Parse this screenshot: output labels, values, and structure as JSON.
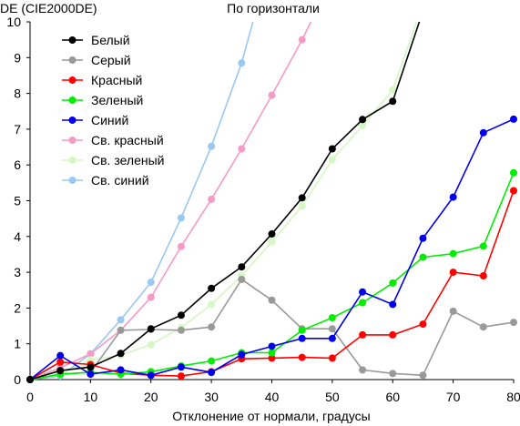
{
  "chart_data": {
    "type": "line",
    "title": "По горизонтали",
    "ylabel": "DE (CIE2000DE)",
    "xlabel": "Отклонение от нормали, градусы",
    "xlim": [
      0,
      80
    ],
    "ylim": [
      0,
      10
    ],
    "xticks": [
      0,
      10,
      20,
      30,
      40,
      50,
      60,
      70,
      80
    ],
    "yticks": [
      0,
      1,
      2,
      3,
      4,
      5,
      6,
      7,
      8,
      9,
      10
    ],
    "grid": false,
    "legend_position": "top-left",
    "series": [
      {
        "name": "Белый",
        "color": "#000000",
        "x": [
          0,
          5,
          10,
          15,
          20,
          25,
          30,
          35,
          40,
          45,
          50,
          55,
          60,
          65
        ],
        "y": [
          0.0,
          0.25,
          0.35,
          0.73,
          1.42,
          1.8,
          2.55,
          3.15,
          4.07,
          5.08,
          6.45,
          7.27,
          7.78,
          10.3
        ]
      },
      {
        "name": "Серый",
        "color": "#999999",
        "x": [
          0,
          5,
          10,
          15,
          20,
          25,
          30,
          35,
          40,
          45,
          50,
          55,
          60,
          65,
          70,
          75,
          80
        ],
        "y": [
          0.0,
          0.15,
          0.2,
          1.38,
          1.4,
          1.38,
          1.47,
          2.8,
          2.22,
          1.42,
          1.42,
          0.27,
          0.17,
          0.12,
          1.91,
          1.47,
          1.6
        ]
      },
      {
        "name": "Красный",
        "color": "#ff0000",
        "x": [
          0,
          5,
          10,
          15,
          20,
          25,
          30,
          35,
          40,
          45,
          50,
          55,
          60,
          65,
          70,
          75,
          80
        ],
        "y": [
          0.0,
          0.49,
          0.42,
          0.18,
          0.12,
          0.1,
          0.22,
          0.58,
          0.6,
          0.62,
          0.6,
          1.25,
          1.25,
          1.55,
          3.0,
          2.9,
          5.28
        ]
      },
      {
        "name": "Зеленый",
        "color": "#00ee00",
        "x": [
          0,
          5,
          10,
          15,
          20,
          25,
          30,
          35,
          40,
          45,
          50,
          55,
          60,
          65,
          70,
          75,
          80
        ],
        "y": [
          0.0,
          0.15,
          0.2,
          0.15,
          0.22,
          0.38,
          0.52,
          0.75,
          0.75,
          1.38,
          1.73,
          2.15,
          2.7,
          3.42,
          3.52,
          3.73,
          5.78
        ]
      },
      {
        "name": "Синий",
        "color": "#0000ee",
        "x": [
          0,
          5,
          10,
          15,
          20,
          25,
          30,
          35,
          40,
          45,
          50,
          55,
          60,
          65,
          70,
          75,
          80
        ],
        "y": [
          0.0,
          0.67,
          0.15,
          0.27,
          0.12,
          0.35,
          0.2,
          0.7,
          0.93,
          1.15,
          1.15,
          2.45,
          2.1,
          3.95,
          5.1,
          6.9,
          7.28
        ]
      },
      {
        "name": "Св. красный",
        "color": "#f79ac5",
        "x": [
          0,
          5,
          10,
          15,
          20,
          25,
          30,
          35,
          40,
          45,
          50
        ],
        "y": [
          0.0,
          0.33,
          0.72,
          1.38,
          2.3,
          3.72,
          5.04,
          6.45,
          7.95,
          9.5,
          11.2
        ]
      },
      {
        "name": "Св. зеленый",
        "color": "#d5f7c3",
        "x": [
          0,
          5,
          10,
          15,
          20,
          25,
          30,
          35,
          40,
          45,
          50,
          55,
          60,
          65
        ],
        "y": [
          0.0,
          0.15,
          0.55,
          0.68,
          0.98,
          1.45,
          2.1,
          2.9,
          3.85,
          4.85,
          6.15,
          7.1,
          8.1,
          10.5
        ]
      },
      {
        "name": "Св. синий",
        "color": "#99c8f1",
        "x": [
          0,
          5,
          10,
          15,
          20,
          25,
          30,
          35,
          38.5
        ],
        "y": [
          0.0,
          0.1,
          0.72,
          1.67,
          2.72,
          4.52,
          6.52,
          8.85,
          11.0
        ]
      }
    ]
  }
}
